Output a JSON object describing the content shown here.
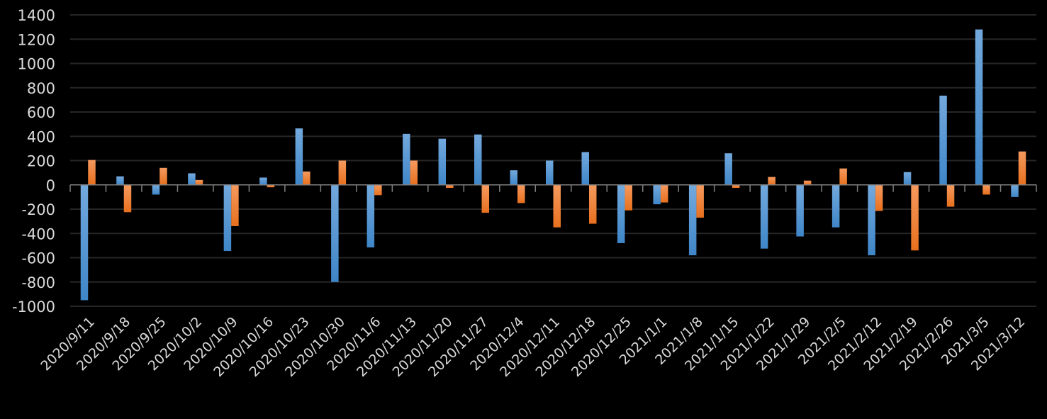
{
  "chart_data": {
    "type": "bar",
    "title": "",
    "xlabel": "",
    "ylabel": "",
    "ylim": [
      -1000,
      1400
    ],
    "yticks": [
      -1000,
      -800,
      -600,
      -400,
      -200,
      0,
      200,
      400,
      600,
      800,
      1000,
      1200,
      1400
    ],
    "grid": true,
    "legend": "none",
    "categories": [
      "2020/9/11",
      "2020/9/18",
      "2020/9/25",
      "2020/10/2",
      "2020/10/9",
      "2020/10/16",
      "2020/10/23",
      "2020/10/30",
      "2020/11/6",
      "2020/11/13",
      "2020/11/20",
      "2020/11/27",
      "2020/12/4",
      "2020/12/11",
      "2020/12/18",
      "2020/12/25",
      "2021/1/1",
      "2021/1/8",
      "2021/1/15",
      "2021/1/22",
      "2021/1/29",
      "2021/2/5",
      "2021/2/12",
      "2021/2/19",
      "2021/2/26",
      "2021/3/5",
      "2021/3/12"
    ],
    "series": [
      {
        "color": "#5b9bd5",
        "values": [
          -950,
          70,
          -80,
          95,
          -545,
          60,
          465,
          -800,
          -515,
          420,
          380,
          415,
          120,
          200,
          270,
          -480,
          -160,
          -580,
          260,
          -525,
          -425,
          -350,
          -580,
          105,
          735,
          1280,
          -100
        ]
      },
      {
        "color": "#ed7d31",
        "values": [
          205,
          -225,
          140,
          40,
          -340,
          -20,
          110,
          200,
          -85,
          200,
          -25,
          -230,
          -150,
          -350,
          -320,
          -210,
          -145,
          -270,
          -25,
          65,
          35,
          135,
          -215,
          -540,
          -180,
          -80,
          275
        ]
      }
    ]
  },
  "colors": {
    "background": "#000000",
    "grid": "#262626",
    "text": "#d9d9d9",
    "axis": "#7f7f7f"
  }
}
